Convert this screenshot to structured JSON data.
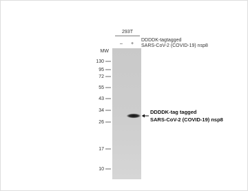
{
  "cell_line": "293T",
  "lanes": [
    "–",
    "+"
  ],
  "lane_label": [
    "DDDDK-tagtagged",
    "SARS-CoV-2 (COVID-19) nsp8"
  ],
  "mw_label": "MW",
  "markers": [
    "130",
    "95",
    "72",
    "55",
    "43",
    "34",
    "26",
    "17",
    "10"
  ],
  "annotation": [
    "DDDDK-tag  tagged",
    "SARS-CoV-2  (COVID-19)  nsp8"
  ]
}
